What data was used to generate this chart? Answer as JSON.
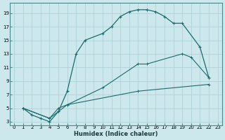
{
  "title": "",
  "xlabel": "Humidex (Indice chaleur)",
  "bg_color": "#cce8ec",
  "grid_color": "#aacdd4",
  "line_color": "#1a6b6b",
  "xlim": [
    -0.5,
    23.5
  ],
  "ylim": [
    2.5,
    20.5
  ],
  "xticks": [
    0,
    1,
    2,
    3,
    4,
    5,
    6,
    7,
    8,
    9,
    10,
    11,
    12,
    13,
    14,
    15,
    16,
    17,
    18,
    19,
    20,
    21,
    22,
    23
  ],
  "yticks": [
    3,
    5,
    7,
    9,
    11,
    13,
    15,
    17,
    19
  ],
  "line1_x": [
    1,
    2,
    3,
    4,
    5,
    6,
    7,
    8,
    10,
    11,
    12,
    13,
    14,
    15,
    16,
    17,
    18,
    19,
    21,
    22
  ],
  "line1_y": [
    5,
    4,
    3.5,
    3,
    4.5,
    7.5,
    13,
    15,
    16,
    17,
    18.5,
    19.2,
    19.5,
    19.5,
    19.2,
    18.5,
    17.5,
    17.5,
    14,
    9.5
  ],
  "line2_x": [
    1,
    4,
    5,
    6,
    10,
    14,
    15,
    19,
    20,
    22
  ],
  "line2_y": [
    5,
    3.5,
    4.5,
    5.5,
    8,
    11.5,
    11.5,
    13,
    12.5,
    9.5
  ],
  "line3_x": [
    1,
    4,
    5,
    6,
    14,
    22
  ],
  "line3_y": [
    5,
    3.5,
    5,
    5.5,
    7.5,
    8.5
  ]
}
